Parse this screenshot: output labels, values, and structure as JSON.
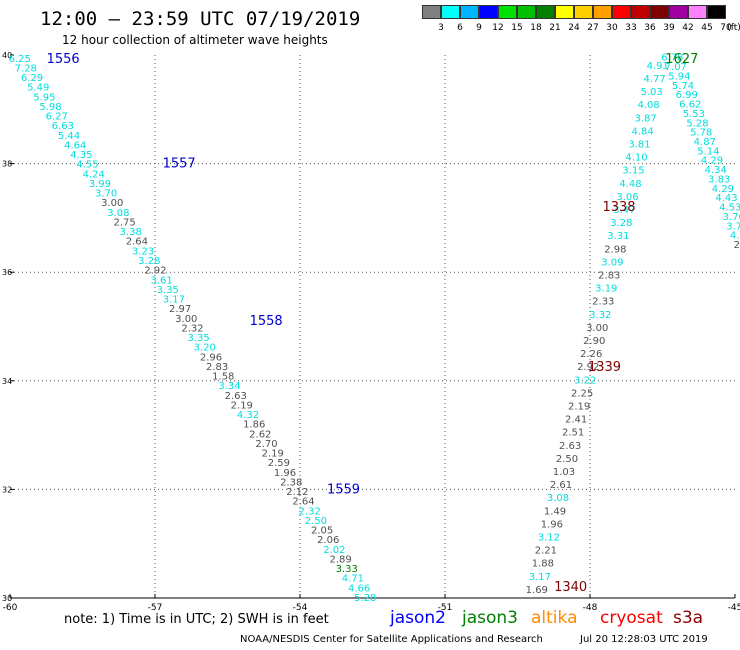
{
  "header": {
    "title": "12:00 — 23:59 UTC 07/19/2019",
    "subtitle": "12 hour collection of altimeter wave heights"
  },
  "legend": {
    "unit": "(ft)",
    "bins": [
      {
        "label": "3",
        "color": "#808080"
      },
      {
        "label": "6",
        "color": "#00ffff"
      },
      {
        "label": "9",
        "color": "#00b4ff"
      },
      {
        "label": "12",
        "color": "#0000ff"
      },
      {
        "label": "15",
        "color": "#00e000"
      },
      {
        "label": "18",
        "color": "#00c000"
      },
      {
        "label": "21",
        "color": "#008000"
      },
      {
        "label": "24",
        "color": "#ffff00"
      },
      {
        "label": "27",
        "color": "#ffd000"
      },
      {
        "label": "30",
        "color": "#ffa000"
      },
      {
        "label": "33",
        "color": "#ff0000"
      },
      {
        "label": "36",
        "color": "#c00000"
      },
      {
        "label": "39",
        "color": "#800000"
      },
      {
        "label": "42",
        "color": "#a000a0"
      },
      {
        "label": "45",
        "color": "#ff80ff"
      },
      {
        "label": "70",
        "color": "#000000"
      }
    ]
  },
  "axes": {
    "lon_ticks": [
      "-60",
      "-57",
      "-54",
      "-51",
      "-48",
      "-45"
    ],
    "lat_ticks": [
      "40",
      "38",
      "36",
      "34",
      "32",
      "30"
    ]
  },
  "chart_data": {
    "type": "scatter",
    "xlim": [
      -60,
      -45
    ],
    "ylim": [
      30,
      40
    ],
    "pass_labels": [
      {
        "text": "1556",
        "lon": -58.9,
        "lat": 39.93,
        "color": "#0000cc"
      },
      {
        "text": "1557",
        "lon": -56.5,
        "lat": 38.0,
        "color": "#0000cc"
      },
      {
        "text": "1558",
        "lon": -54.7,
        "lat": 35.1,
        "color": "#0000cc"
      },
      {
        "text": "1559",
        "lon": -53.1,
        "lat": 32.0,
        "color": "#0000cc"
      },
      {
        "text": "1627",
        "lon": -46.1,
        "lat": 39.93,
        "color": "#008000"
      },
      {
        "text": "1338",
        "lon": -47.4,
        "lat": 37.2,
        "color": "#800000"
      },
      {
        "text": "1339",
        "lon": -47.7,
        "lat": 34.25,
        "color": "#800000"
      },
      {
        "text": "1340",
        "lon": -48.4,
        "lat": 30.2,
        "color": "#800000"
      }
    ],
    "tracks": [
      {
        "name": "jason2_a",
        "start": [
          -59.8,
          39.93
        ],
        "end": [
          -52.65,
          30.0
        ],
        "values": [
          "6.25",
          "7.28",
          "6.29",
          "5.49",
          "5.95",
          "5.98",
          "6.27",
          "6.63",
          "5.44",
          "4.64",
          "4.35",
          "4.55",
          "4.24",
          "3.99",
          "3.70",
          "3.00",
          "3.08",
          "2.75",
          "3.38",
          "2.64",
          "3.23",
          "3.28",
          "2.92",
          "3.61",
          "3.35",
          "3.17",
          "2.97",
          "3.00",
          "2.32",
          "3.35",
          "3.20",
          "2.96",
          "2.83",
          "1.58",
          "3.34",
          "2.63",
          "2.19",
          "4.32",
          "1.86",
          "2.62",
          "2.70",
          "2.19",
          "2.59",
          "1.96",
          "2.38",
          "2.12",
          "2.64",
          "2.32",
          "2.50",
          "2.05",
          "2.06",
          "2.02",
          "2.89",
          "3.33",
          "4.71",
          "4.66",
          "5.28"
        ],
        "colors": [
          "c",
          "c",
          "c",
          "c",
          "c",
          "c",
          "c",
          "c",
          "c",
          "c",
          "c",
          "c",
          "c",
          "c",
          "c",
          "g",
          "c",
          "g",
          "c",
          "g",
          "c",
          "c",
          "g",
          "c",
          "c",
          "c",
          "g",
          "g",
          "g",
          "c",
          "c",
          "g",
          "g",
          "g",
          "c",
          "g",
          "g",
          "c",
          "g",
          "g",
          "g",
          "g",
          "g",
          "g",
          "g",
          "g",
          "g",
          "c",
          "c",
          "g",
          "g",
          "c",
          "g",
          "G",
          "c",
          "c",
          "c"
        ]
      },
      {
        "name": "jason3_b",
        "start": [
          -46.3,
          39.95
        ],
        "end": [
          -44.8,
          36.5
        ],
        "values": [
          "6.78",
          "7.07",
          "5.94",
          "5.74",
          "6.99",
          "6.62",
          "5.53",
          "5.28",
          "5.78",
          "4.87",
          "5.14",
          "4.29",
          "4.34",
          "3.83",
          "4.29",
          "4.43",
          "4.53",
          "3.70",
          "3.77",
          "4.04",
          "2.54"
        ],
        "colors": [
          "c",
          "c",
          "c",
          "c",
          "c",
          "c",
          "c",
          "c",
          "c",
          "c",
          "c",
          "c",
          "c",
          "c",
          "c",
          "c",
          "c",
          "c",
          "c",
          "c",
          "g"
        ]
      },
      {
        "name": "cryosat_c",
        "start": [
          -46.6,
          39.8
        ],
        "end": [
          -49.1,
          30.15
        ],
        "values": [
          "4.91",
          "4.77",
          "5.03",
          "4.08",
          "3.87",
          "4.84",
          "3.81",
          "4.10",
          "3.15",
          "4.48",
          "3.06",
          "3.47",
          "3.28",
          "3.31",
          "2.98",
          "3.09",
          "2.83",
          "3.19",
          "2.33",
          "3.32",
          "3.00",
          "2.90",
          "2.26",
          "2.92",
          "3.22",
          "2.25",
          "2.19",
          "2.41",
          "2.51",
          "2.63",
          "2.50",
          "1.03",
          "2.61",
          "3.08",
          "1.49",
          "1.96",
          "3.12",
          "2.21",
          "1.88",
          "3.17",
          "1.69"
        ],
        "colors": [
          "c",
          "c",
          "c",
          "c",
          "c",
          "c",
          "c",
          "c",
          "c",
          "c",
          "c",
          "c",
          "c",
          "c",
          "g",
          "c",
          "g",
          "c",
          "g",
          "c",
          "g",
          "g",
          "g",
          "g",
          "c",
          "g",
          "g",
          "g",
          "g",
          "g",
          "g",
          "g",
          "g",
          "c",
          "g",
          "g",
          "c",
          "g",
          "g",
          "c",
          "g"
        ]
      }
    ]
  },
  "footer": {
    "note": "note: 1) Time is in UTC; 2) SWH is in feet",
    "satellites": [
      {
        "name": "jason2",
        "color": "#0000ff"
      },
      {
        "name": "jason3",
        "color": "#008000"
      },
      {
        "name": "altika",
        "color": "#ff8c00"
      },
      {
        "name": "cryosat",
        "color": "#ff0000"
      },
      {
        "name": "s3a",
        "color": "#8b0000"
      }
    ],
    "credit": "NOAA/NESDIS Center for Satellite Applications and Research",
    "timestamp": "Jul 20 12:28:03 UTC 2019"
  }
}
